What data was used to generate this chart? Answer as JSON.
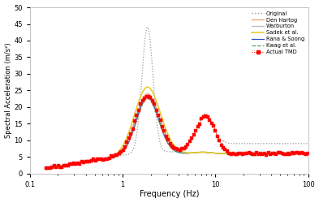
{
  "title": "",
  "xlabel": "Frequency (Hz)",
  "ylabel": "Spectral Acceleration (m/s²)",
  "xlim": [
    0.1,
    100
  ],
  "ylim": [
    0,
    50
  ],
  "yticks": [
    0,
    5,
    10,
    15,
    20,
    25,
    30,
    35,
    40,
    45,
    50
  ],
  "legend_labels": [
    "Original",
    "Den Hartog",
    "Warburton",
    "Sadek et al.",
    "Rana & Soong",
    "Kwag et al.",
    "Actual TMD"
  ],
  "original_color": "#999999",
  "den_hartog_color": "#e8a060",
  "warburton_color": "#bbbbbb",
  "sadek_color": "#e8cc30",
  "rana_color": "#3050c0",
  "kwag_color": "#50a050",
  "actual_color": "#ff0000",
  "bg_color": "#ffffff",
  "peak1_freq": 1.8,
  "peak2_freq": 7.8
}
